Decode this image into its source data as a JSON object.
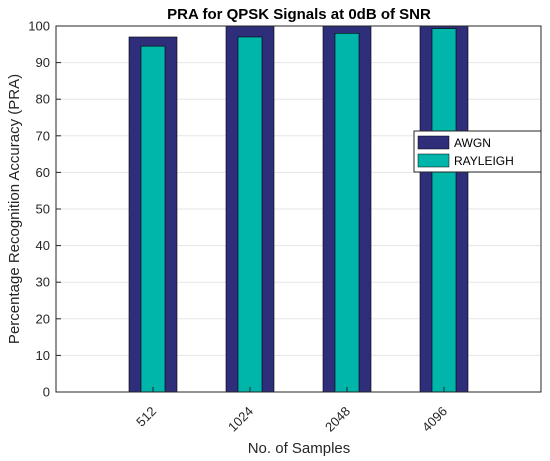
{
  "chart_data": {
    "type": "bar",
    "title": "PRA for QPSK Signals at 0dB of SNR",
    "xlabel": "No. of Samples",
    "ylabel": "Percentage Recognition Accuracy (PRA)",
    "categories": [
      "512",
      "1024",
      "2048",
      "4096"
    ],
    "ylim": [
      0,
      100
    ],
    "yticks": [
      0,
      10,
      20,
      30,
      40,
      50,
      60,
      70,
      80,
      90,
      100
    ],
    "grid": true,
    "legend_position": "right",
    "series": [
      {
        "name": "AWGN",
        "values": [
          97,
          100,
          100,
          100
        ],
        "color": "#2e2e7a"
      },
      {
        "name": "RAYLEIGH",
        "values": [
          94.5,
          97,
          98,
          99.3
        ],
        "color": "#00b5aa"
      }
    ]
  }
}
